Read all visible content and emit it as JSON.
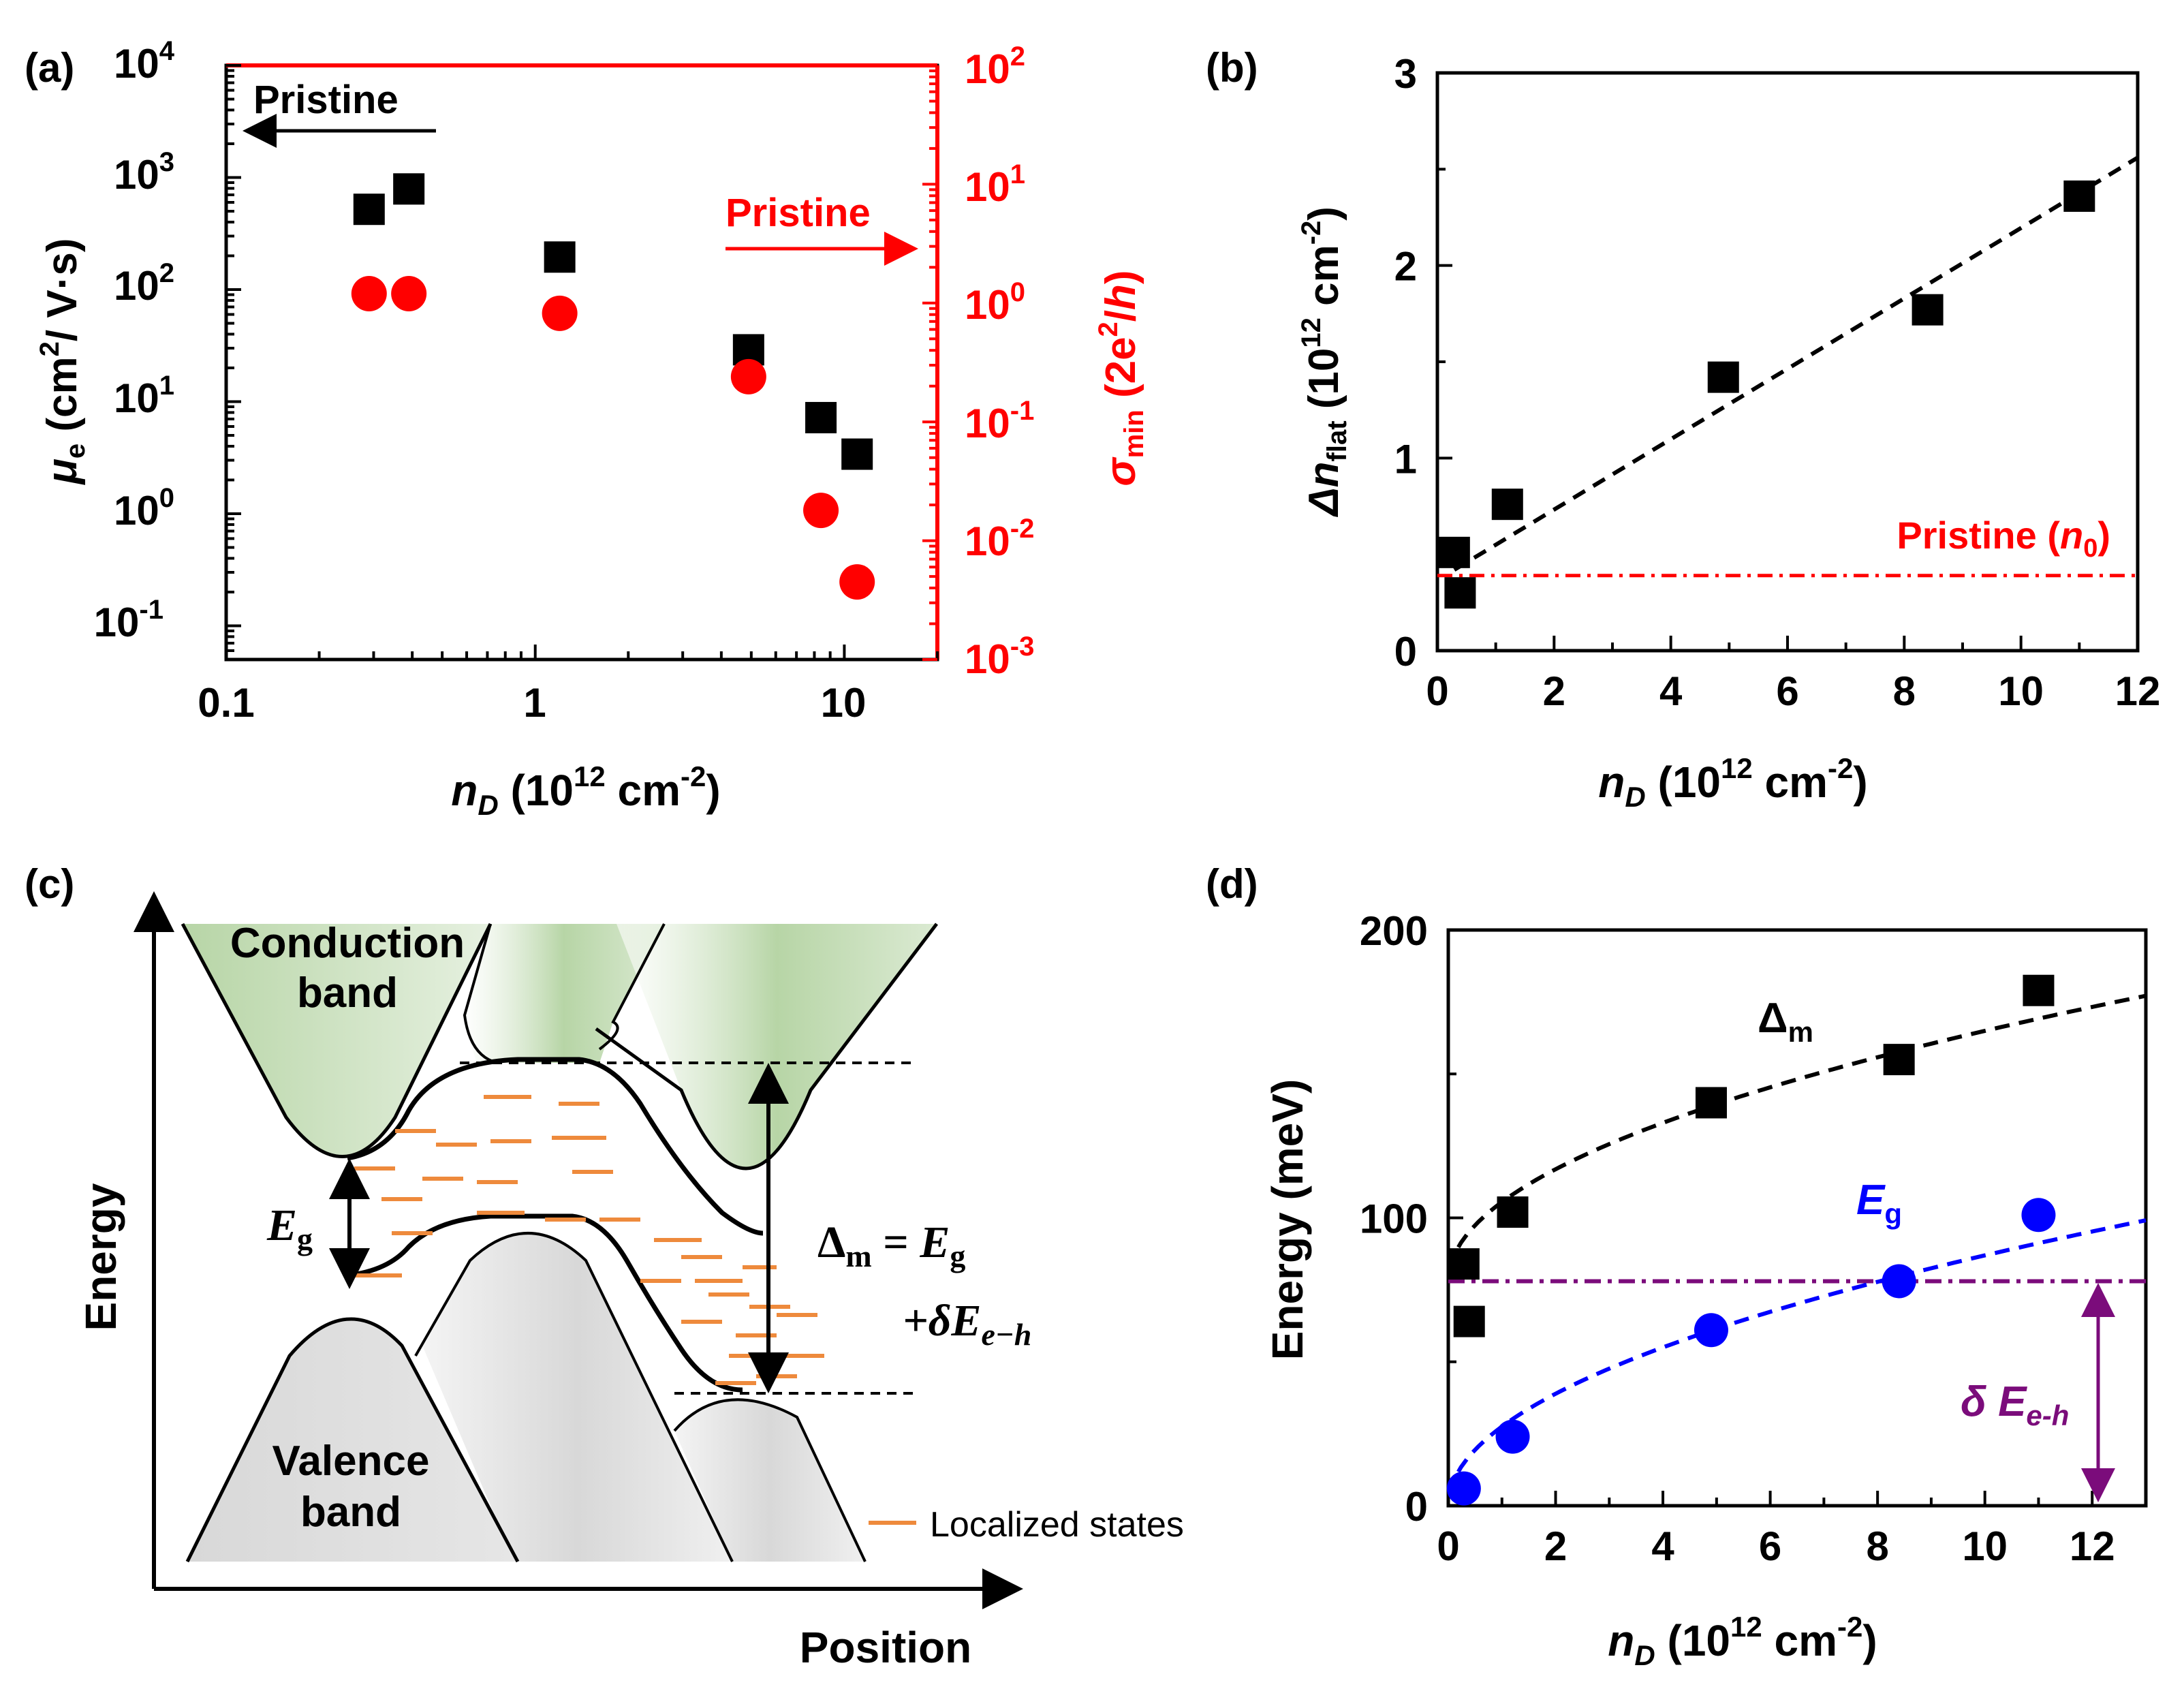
{
  "colors": {
    "black": "#000000",
    "red": "#ff0000",
    "blue": "#0000ff",
    "purple": "#7b0c7b",
    "orange": "#ee8a3c",
    "green": "#b7d5a6",
    "gray": "#d8d8d8"
  },
  "chart_data": [
    {
      "panel": "a",
      "label": "(a)",
      "type": "scatter",
      "xscale": "log",
      "xlim": [
        0.1,
        20
      ],
      "xticks": [
        "0.1",
        "1",
        "10"
      ],
      "xlabel": {
        "main": "n",
        "sub": "D",
        "unit": " (10",
        "exp": "12",
        "unit2": " cm",
        "exp2": "-2",
        "close": ")"
      },
      "left_axis": {
        "scale": "log",
        "ylim": [
          0.05,
          10000
        ],
        "ticks": [
          {
            "base": "10",
            "exp": "-1"
          },
          {
            "base": "10",
            "exp": "0"
          },
          {
            "base": "10",
            "exp": "1"
          },
          {
            "base": "10",
            "exp": "2"
          },
          {
            "base": "10",
            "exp": "3"
          },
          {
            "base": "10",
            "exp": "4"
          }
        ],
        "label": {
          "sym": "μ",
          "sub": "e",
          "rest": " (cm",
          "exp": "2",
          "rest2": "/ V·s)"
        }
      },
      "right_axis": {
        "scale": "log",
        "ylim": [
          0.001,
          100
        ],
        "color": "#ff0000",
        "ticks": [
          {
            "base": "10",
            "exp": "-3"
          },
          {
            "base": "10",
            "exp": "-2"
          },
          {
            "base": "10",
            "exp": "-1"
          },
          {
            "base": "10",
            "exp": "0"
          },
          {
            "base": "10",
            "exp": "1"
          },
          {
            "base": "10",
            "exp": "2"
          }
        ],
        "label": {
          "sym": "σ",
          "sub": "min",
          "open": " (2e",
          "exp": "2",
          "slash": "/",
          "h": "h",
          "close": ")"
        }
      },
      "series": [
        {
          "name": "μe",
          "marker": "square",
          "color": "#000000",
          "axis": "left",
          "x": [
            0.29,
            0.39,
            1.2,
            4.9,
            8.4,
            11.0
          ],
          "y": [
            520,
            790,
            195,
            29,
            7.2,
            3.4
          ]
        },
        {
          "name": "σmin",
          "marker": "circle",
          "color": "#ff0000",
          "axis": "right",
          "x": [
            0.29,
            0.39,
            1.2,
            4.9,
            8.4,
            11.0
          ],
          "y": [
            1.2,
            1.2,
            0.82,
            0.24,
            0.018,
            0.0045
          ]
        }
      ],
      "reference_lines": [
        {
          "axis": "left",
          "value": 10000,
          "label": "Pristine",
          "arrow": "left"
        },
        {
          "axis": "right",
          "value": 100,
          "label": "Pristine",
          "arrow": "right"
        }
      ]
    },
    {
      "panel": "b",
      "label": "(b)",
      "type": "scatter",
      "xlim": [
        0,
        12
      ],
      "ylim": [
        0,
        3
      ],
      "xticks": [
        "0",
        "2",
        "4",
        "6",
        "8",
        "10",
        "12"
      ],
      "yticks": [
        "0",
        "1",
        "2",
        "3"
      ],
      "xlabel": {
        "main": "n",
        "sub": "D",
        "unit": " (10",
        "exp": "12",
        "unit2": " cm",
        "exp2": "-2",
        "close": ")"
      },
      "ylabel": {
        "sym": "Δn",
        "sub": "flat",
        "unit": " (10",
        "exp": "12",
        "unit2": " cm",
        "exp2": "-2",
        "close": ")"
      },
      "series": [
        {
          "name": "Δn_flat",
          "marker": "square",
          "color": "#000000",
          "x": [
            0.29,
            0.39,
            1.2,
            4.9,
            8.4,
            11.0
          ],
          "y": [
            0.51,
            0.3,
            0.76,
            1.42,
            1.77,
            2.36
          ]
        }
      ],
      "fit": {
        "style": "dashed",
        "color": "#000000",
        "x": [
          0.29,
          12
        ],
        "y": [
          0.42,
          2.56
        ]
      },
      "reference": {
        "value": 0.39,
        "style": "dash-dot",
        "color": "#ff0000",
        "text": "Pristine (",
        "sym": "n",
        "sub": "0",
        "close": ")"
      }
    },
    {
      "panel": "c",
      "label": "(c)",
      "type": "diagram",
      "ylabel": "Energy",
      "xlabel": "Position",
      "conduction_label": [
        "Conduction",
        "band"
      ],
      "valence_label": [
        "Valence",
        "band"
      ],
      "eg_label": {
        "sym": "E",
        "sub": "g"
      },
      "delta_label": {
        "line1": "Δ",
        "sub1": "m",
        "eq": " = ",
        "sym": "E",
        "sub2": "g",
        "line2": "+δE",
        "sub3": "e−h"
      },
      "legend": "Localized states"
    },
    {
      "panel": "d",
      "label": "(d)",
      "type": "scatter",
      "xlim": [
        0,
        13
      ],
      "ylim": [
        0,
        200
      ],
      "xticks": [
        "0",
        "2",
        "4",
        "6",
        "8",
        "10",
        "12"
      ],
      "yticks": [
        "0",
        "100",
        "200"
      ],
      "xlabel": {
        "main": "n",
        "sub": "D",
        "unit": " (10",
        "exp": "12",
        "unit2": " cm",
        "exp2": "-2",
        "close": ")"
      },
      "ylabel": "Energy (meV)",
      "series": [
        {
          "name": "Δm",
          "label_sym": "Δ",
          "label_sub": "m",
          "marker": "square",
          "color": "#000000",
          "x": [
            0.29,
            0.39,
            1.2,
            4.9,
            8.4,
            11.0
          ],
          "y": [
            84,
            64,
            102,
            140,
            155,
            179
          ]
        },
        {
          "name": "Eg",
          "label_sym": "E",
          "label_sub": "g",
          "marker": "circle",
          "color": "#0000ff",
          "x": [
            0.29,
            1.2,
            4.9,
            8.4,
            11.0
          ],
          "y": [
            6,
            24,
            61,
            78,
            101
          ]
        }
      ],
      "fits": [
        {
          "series": "Δm",
          "style": "dashed",
          "color": "#000000",
          "a": 78,
          "b": 27.5,
          "exponent": 0.5
        },
        {
          "series": "Eg",
          "style": "dashed",
          "color": "#0000ff",
          "a": 0,
          "b": 27.5,
          "exponent": 0.5
        }
      ],
      "reference": {
        "value": 78,
        "style": "dash-dot",
        "color": "#7b0c7b"
      },
      "annotation": {
        "sym": "δ E",
        "sub": "e-h",
        "color": "#7b0c7b"
      }
    }
  ]
}
